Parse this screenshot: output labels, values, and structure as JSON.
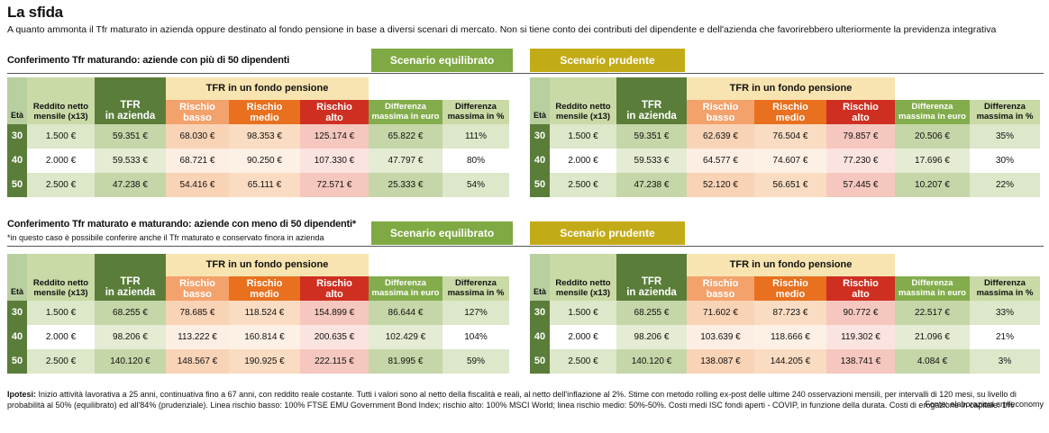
{
  "title": "La sfida",
  "subtitle": "A quanto ammonta il Tfr maturato in azienda oppure destinato al fondo pensione in base a diversi scenari di mercato. Non si tiene conto dei contributi del dipendente e dell'azienda che favorirebbero ulteriormente la previdenza integrativa",
  "headers": {
    "eta": "Età",
    "reddito_1": "Reddito netto",
    "reddito_2": "mensile (x13)",
    "tfr_1": "TFR",
    "tfr_2": "in azienda",
    "group": "TFR in un fondo pensione",
    "rb_1": "Rischio",
    "rb_2": "basso",
    "rm_1": "Rischio",
    "rm_2": "medio",
    "ra_1": "Rischio",
    "ra_2": "alto",
    "de_1": "Differenza",
    "de_2": "massima in euro",
    "dp_1": "Differenza",
    "dp_2": "massima in %"
  },
  "scenario_labels": {
    "equilibrato": "Scenario equilibrato",
    "prudente": "Scenario prudente"
  },
  "sections": [
    {
      "heading": "Conferimento Tfr maturando: aziende con più di 50 dipendenti",
      "note": "",
      "equilibrato": [
        {
          "eta": "30",
          "reddito": "1.500 €",
          "tfr": "59.351 €",
          "rb": "68.030 €",
          "rm": "98.353 €",
          "ra": "125.174 €",
          "de": "65.822 €",
          "dp": "111%"
        },
        {
          "eta": "40",
          "reddito": "2.000 €",
          "tfr": "59.533 €",
          "rb": "68.721 €",
          "rm": "90.250 €",
          "ra": "107.330 €",
          "de": "47.797 €",
          "dp": "80%"
        },
        {
          "eta": "50",
          "reddito": "2.500 €",
          "tfr": "47.238 €",
          "rb": "54.416 €",
          "rm": "65.111 €",
          "ra": "72.571 €",
          "de": "25.333 €",
          "dp": "54%"
        }
      ],
      "prudente": [
        {
          "eta": "30",
          "reddito": "1.500 €",
          "tfr": "59.351 €",
          "rb": "62.639 €",
          "rm": "76.504 €",
          "ra": "79.857 €",
          "de": "20.506 €",
          "dp": "35%"
        },
        {
          "eta": "40",
          "reddito": "2.000 €",
          "tfr": "59.533 €",
          "rb": "64.577 €",
          "rm": "74.607 €",
          "ra": "77.230 €",
          "de": "17.696 €",
          "dp": "30%"
        },
        {
          "eta": "50",
          "reddito": "2.500 €",
          "tfr": "47.238 €",
          "rb": "52.120 €",
          "rm": "56.651 €",
          "ra": "57.445 €",
          "de": "10.207 €",
          "dp": "22%"
        }
      ]
    },
    {
      "heading": "Conferimento Tfr maturato e maturando: aziende con meno di 50 dipendenti*",
      "note": "*in questo caso è possibile conferire anche il Tfr maturato e conservato finora in azienda",
      "equilibrato": [
        {
          "eta": "30",
          "reddito": "1.500 €",
          "tfr": "68.255 €",
          "rb": "78.685 €",
          "rm": "118.524 €",
          "ra": "154.899 €",
          "de": "86.644 €",
          "dp": "127%"
        },
        {
          "eta": "40",
          "reddito": "2.000 €",
          "tfr": "98.206 €",
          "rb": "113.222 €",
          "rm": "160.814 €",
          "ra": "200.635 €",
          "de": "102.429 €",
          "dp": "104%"
        },
        {
          "eta": "50",
          "reddito": "2.500 €",
          "tfr": "140.120 €",
          "rb": "148.567 €",
          "rm": "190.925 €",
          "ra": "222.115 €",
          "de": "81.995 €",
          "dp": "59%"
        }
      ],
      "prudente": [
        {
          "eta": "30",
          "reddito": "1.500 €",
          "tfr": "68.255 €",
          "rb": "71.602 €",
          "rm": "87.723 €",
          "ra": "90.772 €",
          "de": "22.517 €",
          "dp": "33%"
        },
        {
          "eta": "40",
          "reddito": "2.000 €",
          "tfr": "98.206 €",
          "rb": "103.639 €",
          "rm": "118.666 €",
          "ra": "119.302 €",
          "de": "21.096 €",
          "dp": "21%"
        },
        {
          "eta": "50",
          "reddito": "2.500 €",
          "tfr": "140.120 €",
          "rb": "138.087 €",
          "rm": "144.205 €",
          "ra": "138.741 €",
          "de": "4.084 €",
          "dp": "3%"
        }
      ]
    }
  ],
  "footer": {
    "ipotesi_label": "Ipotesi:",
    "ipotesi_text": "Inizio attività lavorativa a 25 anni, continuativa fino a 67 anni, con reddito reale costante. Tutti i valori sono al netto della fiscalità e reali, al netto dell'inflazione al 2%. Stime con metodo rolling ex-post delle ultime 240 osservazioni mensili, per intervalli di 120 mesi, su livello di probabilità al 50% (equilibrato) ed all'84% (prudenziale). Linea rischio basso: 100% FTSE EMU Government Bond Index; rischio alto: 100% MSCI World; linea rischio medio: 50%-50%. Costi medi ISC fondi aperti - COVIP, in funzione della durata. Costi di erogazione in capitale: 1%",
    "fonte": "Fonte: elaborazioni smileconomy"
  }
}
